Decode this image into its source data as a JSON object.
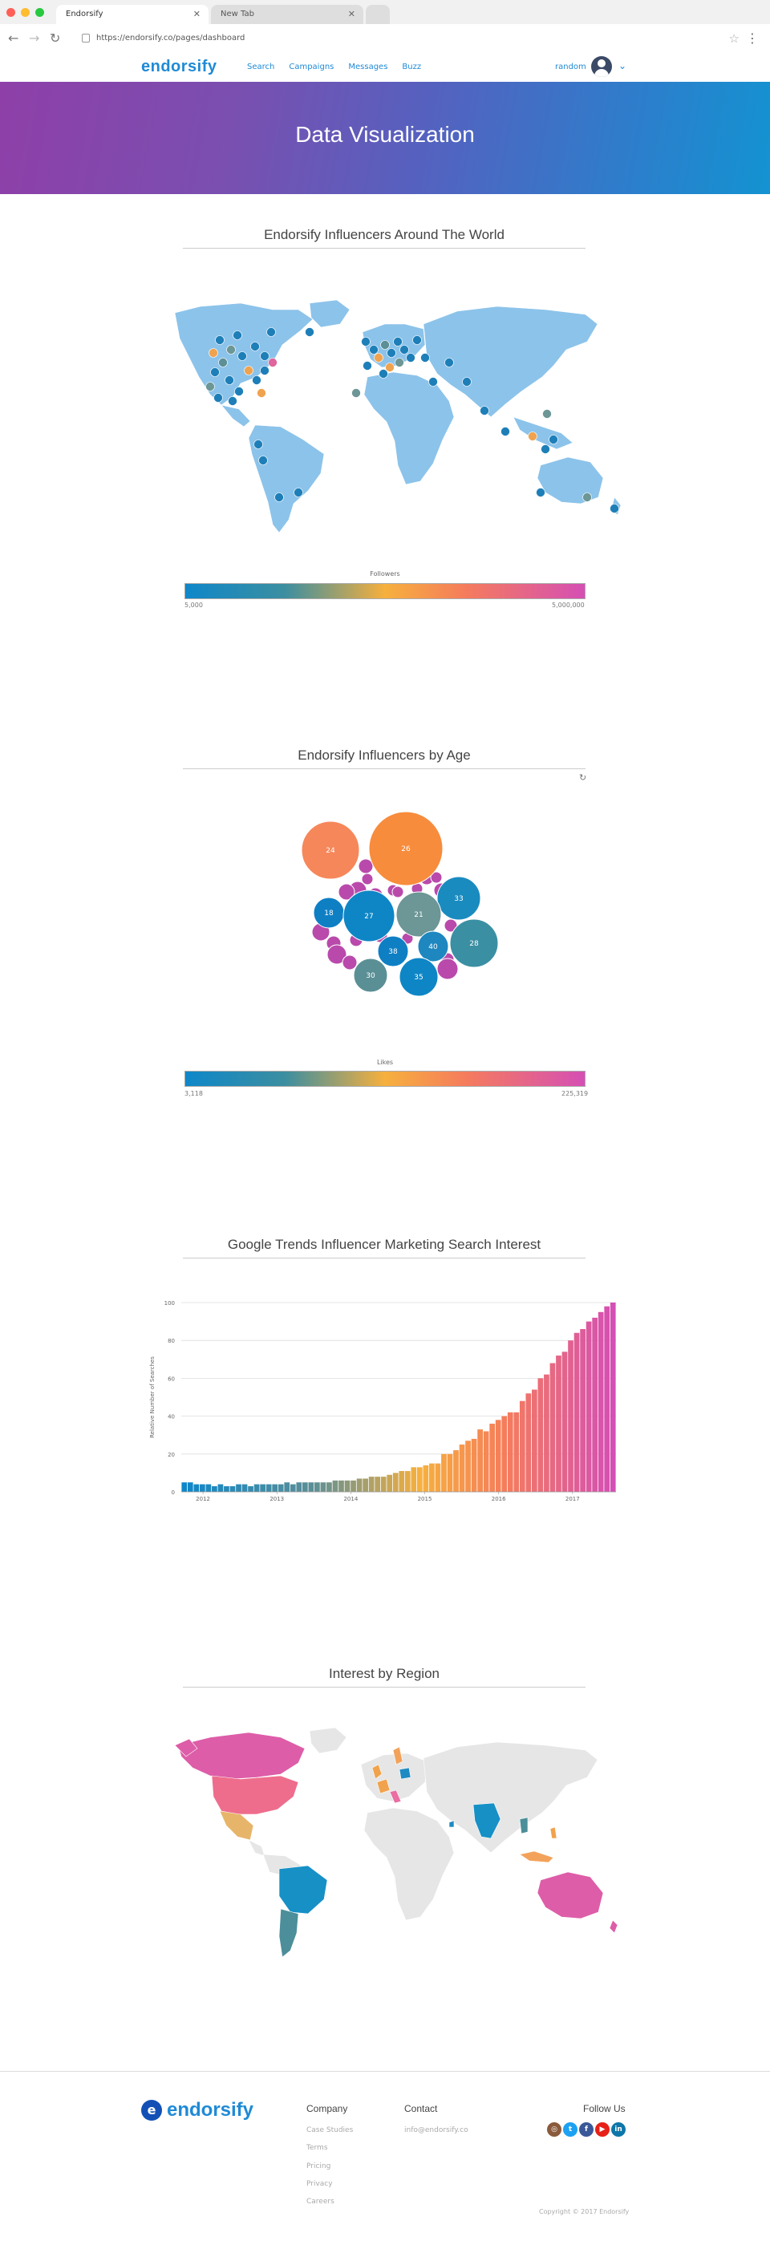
{
  "browser": {
    "tabs": [
      "Endorsify",
      "New Tab"
    ],
    "url": "https://endorsify.co/pages/dashboard"
  },
  "nav": {
    "logo": "endorsify",
    "links": [
      "Search",
      "Campaigns",
      "Messages",
      "Buzz"
    ],
    "username": "random"
  },
  "hero": {
    "title": "Data Visualization"
  },
  "sections": {
    "world": {
      "title": "Endorsify Influencers Around The World",
      "legend_title": "Followers",
      "legend_min": "5,000",
      "legend_max": "5,000,000"
    },
    "age": {
      "title": "Endorsify Influencers by Age",
      "legend_title": "Likes",
      "legend_min": "3,118",
      "legend_max": "225,319"
    },
    "trends": {
      "title": "Google Trends Influencer Marketing Search Interest"
    },
    "region": {
      "title": "Interest by Region"
    }
  },
  "chart_data": [
    {
      "type": "bubble",
      "title": "Endorsify Influencers by Age",
      "labeled_bubbles": [
        {
          "label": "24",
          "color": "#f6875a"
        },
        {
          "label": "26",
          "color": "#f78c3c"
        },
        {
          "label": "33",
          "color": "#1a8bbf"
        },
        {
          "label": "21",
          "color": "#6d9696"
        },
        {
          "label": "18",
          "color": "#0f7fc4"
        },
        {
          "label": "27",
          "color": "#0e86c6"
        },
        {
          "label": "40",
          "color": "#1e87c0"
        },
        {
          "label": "28",
          "color": "#3b8fa3"
        },
        {
          "label": "38",
          "color": "#0f7fc4"
        },
        {
          "label": "30",
          "color": "#5b8f96"
        },
        {
          "label": "35",
          "color": "#0e86c6"
        }
      ]
    },
    {
      "type": "bar",
      "title": "Google Trends Influencer Marketing Search Interest",
      "ylabel": "Relative Number of Searches",
      "ylim": [
        0,
        100
      ],
      "yticks": [
        "100",
        "80",
        "60",
        "40",
        "20",
        "0"
      ],
      "xticks": [
        "2012",
        "2013",
        "2014",
        "2015",
        "2016",
        "2017"
      ],
      "values": [
        5,
        5,
        4,
        4,
        4,
        3,
        4,
        3,
        3,
        4,
        4,
        3,
        4,
        4,
        4,
        4,
        4,
        5,
        4,
        5,
        5,
        5,
        5,
        5,
        5,
        6,
        6,
        6,
        6,
        7,
        7,
        8,
        8,
        8,
        9,
        10,
        11,
        11,
        13,
        13,
        14,
        15,
        15,
        20,
        20,
        22,
        25,
        27,
        28,
        33,
        32,
        36,
        38,
        40,
        42,
        42,
        48,
        52,
        54,
        60,
        62,
        68,
        72,
        74,
        80,
        84,
        86,
        90,
        92,
        95,
        98,
        100
      ]
    }
  ],
  "footer": {
    "logo": "endorsify",
    "company_heading": "Company",
    "company_links": [
      "Case Studies",
      "Terms",
      "Pricing",
      "Privacy",
      "Careers"
    ],
    "contact_heading": "Contact",
    "contact_email": "info@endorsify.co",
    "follow_heading": "Follow Us",
    "copyright": "Copyright © 2017 Endorsify"
  }
}
